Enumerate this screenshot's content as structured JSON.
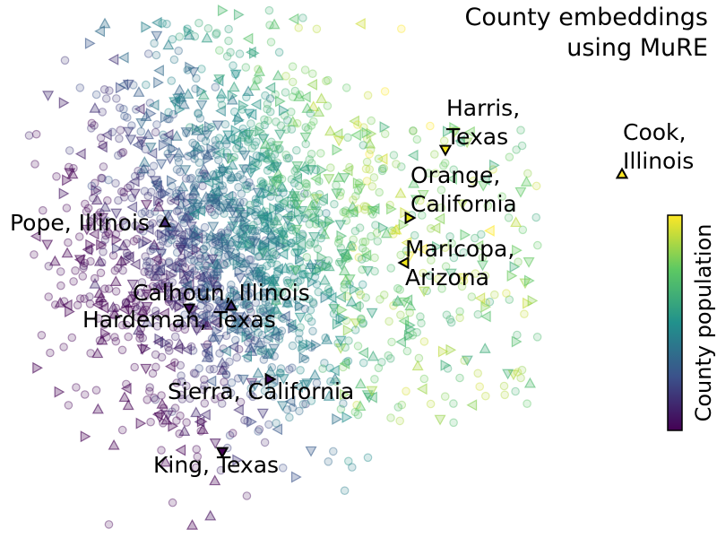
{
  "chart_data": {
    "type": "scatter",
    "title_lines": [
      "County embeddings",
      "using MuRE"
    ],
    "colorbar": {
      "label": "County population",
      "colormap": "viridis",
      "stops": [
        "#440154",
        "#3b528b",
        "#21918c",
        "#5ec962",
        "#fde725"
      ]
    },
    "highlighted_marker_edge": "#000000",
    "background_points": {
      "description_of_markers": [
        "circle",
        "triangle-up",
        "triangle-down",
        "triangle-right",
        "triangle-left"
      ],
      "approximate_count": 2000
    },
    "highlighted": [
      {
        "label_lines": [
          "Cook,",
          "Illinois"
        ],
        "marker": "triangle-up",
        "population_level": 1.0,
        "color": "#fde725"
      },
      {
        "label_lines": [
          "Harris,",
          "Texas"
        ],
        "marker": "triangle-down",
        "population_level": 0.98,
        "color": "#f2e51d"
      },
      {
        "label_lines": [
          "Orange,",
          "California"
        ],
        "marker": "triangle-right",
        "population_level": 0.95,
        "color": "#e6e419"
      },
      {
        "label_lines": [
          "Maricopa,",
          "Arizona"
        ],
        "marker": "triangle-left",
        "population_level": 0.97,
        "color": "#f0e51c"
      },
      {
        "label_lines": [
          "Pope, Illinois"
        ],
        "marker": "triangle-up",
        "population_level": 0.12,
        "color": "#472d7b"
      },
      {
        "label_lines": [
          "Calhoun, Illinois"
        ],
        "marker": "triangle-up",
        "population_level": 0.15,
        "color": "#46337e"
      },
      {
        "label_lines": [
          "Hardeman, Texas"
        ],
        "marker": "triangle-down",
        "population_level": 0.08,
        "color": "#471365"
      },
      {
        "label_lines": [
          "Sierra, California"
        ],
        "marker": "triangle-right",
        "population_level": 0.05,
        "color": "#440f60"
      },
      {
        "label_lines": [
          "King, Texas"
        ],
        "marker": "triangle-down",
        "population_level": 0.0,
        "color": "#440154"
      }
    ]
  }
}
